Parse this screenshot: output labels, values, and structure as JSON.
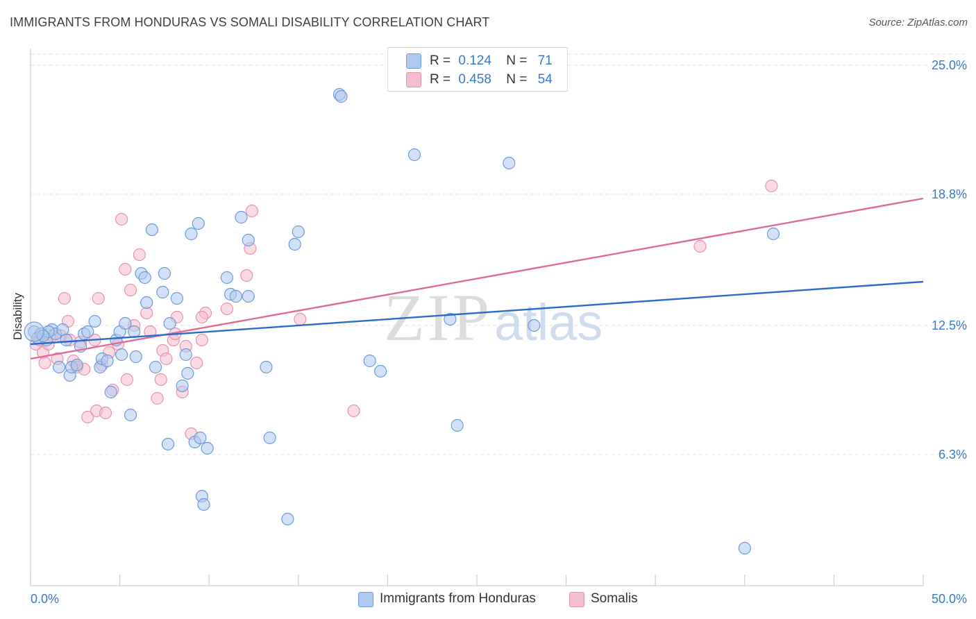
{
  "title": "IMMIGRANTS FROM HONDURAS VS SOMALI DISABILITY CORRELATION CHART",
  "source": "Source: ZipAtlas.com",
  "watermark": {
    "zip": "ZIP",
    "atlas": "atlas"
  },
  "legend": {
    "r_label": "R =",
    "n_label": "N =",
    "series1": {
      "r": "0.124",
      "n": "71"
    },
    "series2": {
      "r": "0.458",
      "n": "54"
    }
  },
  "colors": {
    "blue_fill": "#aec9ef",
    "blue_stroke": "#6d9ad8",
    "blue_line": "#2a6dc9",
    "pink_fill": "#f5bccd",
    "pink_stroke": "#e593ad",
    "pink_line": "#e06a94",
    "tick_text": "#3a78c9",
    "grid": "#e3e3e3"
  },
  "chart_data": {
    "type": "scatter",
    "title": "IMMIGRANTS FROM HONDURAS VS SOMALI DISABILITY CORRELATION CHART",
    "xlabel": "",
    "ylabel": "Disability",
    "xlim": [
      0,
      50
    ],
    "ylim": [
      0,
      25.8
    ],
    "x_tick_labels": [
      "0.0%",
      "50.0%"
    ],
    "y_ticks": [
      6.3,
      12.5,
      18.8,
      25.0
    ],
    "y_tick_labels": [
      "6.3%",
      "12.5%",
      "18.8%",
      "25.0%"
    ],
    "legend_position": "bottom",
    "series": [
      {
        "name": "Immigrants from Honduras",
        "trend": {
          "x": [
            0,
            50
          ],
          "y": [
            11.6,
            14.6
          ]
        },
        "points": [
          [
            0.2,
            12.2
          ],
          [
            0.4,
            11.9
          ],
          [
            0.6,
            12.1
          ],
          [
            0.9,
            11.8
          ],
          [
            1.2,
            12.3
          ],
          [
            1.4,
            12.1
          ],
          [
            1.6,
            10.5
          ],
          [
            1.8,
            12.3
          ],
          [
            2.0,
            11.8
          ],
          [
            2.2,
            10.1
          ],
          [
            2.3,
            10.5
          ],
          [
            2.6,
            10.6
          ],
          [
            2.8,
            11.5
          ],
          [
            3.0,
            12.1
          ],
          [
            3.2,
            12.2
          ],
          [
            3.6,
            12.7
          ],
          [
            3.9,
            10.5
          ],
          [
            4.0,
            10.9
          ],
          [
            4.3,
            10.8
          ],
          [
            4.5,
            9.3
          ],
          [
            4.8,
            11.8
          ],
          [
            5.0,
            12.2
          ],
          [
            5.1,
            11.1
          ],
          [
            5.3,
            12.6
          ],
          [
            5.6,
            8.2
          ],
          [
            5.9,
            11.0
          ],
          [
            5.8,
            12.2
          ],
          [
            6.2,
            15.0
          ],
          [
            6.4,
            14.8
          ],
          [
            6.5,
            13.6
          ],
          [
            6.8,
            17.1
          ],
          [
            7.0,
            10.5
          ],
          [
            7.4,
            14.1
          ],
          [
            7.5,
            15.0
          ],
          [
            7.7,
            6.8
          ],
          [
            7.8,
            12.6
          ],
          [
            8.2,
            13.8
          ],
          [
            8.5,
            9.6
          ],
          [
            8.7,
            11.1
          ],
          [
            8.8,
            10.2
          ],
          [
            9.0,
            16.9
          ],
          [
            9.2,
            6.9
          ],
          [
            9.4,
            17.4
          ],
          [
            9.5,
            7.1
          ],
          [
            9.6,
            4.3
          ],
          [
            9.7,
            3.9
          ],
          [
            9.9,
            6.6
          ],
          [
            11.0,
            14.8
          ],
          [
            11.2,
            14.0
          ],
          [
            11.5,
            13.9
          ],
          [
            11.8,
            17.7
          ],
          [
            12.2,
            16.6
          ],
          [
            12.2,
            13.9
          ],
          [
            13.2,
            10.5
          ],
          [
            13.4,
            7.1
          ],
          [
            14.4,
            3.2
          ],
          [
            14.8,
            16.4
          ],
          [
            15.0,
            17.0
          ],
          [
            17.3,
            23.6
          ],
          [
            17.4,
            23.5
          ],
          [
            19.0,
            10.8
          ],
          [
            19.6,
            10.3
          ],
          [
            21.5,
            20.7
          ],
          [
            23.5,
            12.8
          ],
          [
            23.9,
            7.7
          ],
          [
            26.8,
            20.3
          ],
          [
            28.2,
            12.5
          ],
          [
            40.0,
            1.8
          ],
          [
            41.6,
            16.9
          ],
          [
            1.0,
            12.2
          ],
          [
            0.7,
            12.0
          ]
        ]
      },
      {
        "name": "Somalis",
        "trend": {
          "x": [
            0,
            50
          ],
          "y": [
            10.9,
            18.6
          ]
        },
        "points": [
          [
            0.3,
            11.6
          ],
          [
            0.5,
            11.8
          ],
          [
            0.7,
            11.2
          ],
          [
            0.8,
            10.7
          ],
          [
            1.0,
            11.6
          ],
          [
            1.2,
            12.0
          ],
          [
            1.5,
            10.9
          ],
          [
            1.7,
            12.0
          ],
          [
            1.9,
            13.8
          ],
          [
            2.1,
            12.7
          ],
          [
            2.2,
            11.8
          ],
          [
            2.4,
            10.8
          ],
          [
            2.6,
            10.5
          ],
          [
            2.8,
            11.7
          ],
          [
            3.0,
            10.4
          ],
          [
            3.2,
            8.1
          ],
          [
            3.6,
            11.8
          ],
          [
            3.7,
            8.4
          ],
          [
            3.8,
            13.8
          ],
          [
            4.0,
            10.6
          ],
          [
            4.2,
            8.3
          ],
          [
            4.4,
            11.2
          ],
          [
            4.6,
            9.4
          ],
          [
            4.9,
            11.6
          ],
          [
            5.1,
            17.6
          ],
          [
            5.3,
            15.2
          ],
          [
            5.4,
            9.9
          ],
          [
            5.6,
            14.2
          ],
          [
            5.8,
            12.5
          ],
          [
            6.1,
            15.9
          ],
          [
            6.5,
            13.1
          ],
          [
            6.7,
            12.2
          ],
          [
            7.1,
            9.0
          ],
          [
            7.3,
            9.9
          ],
          [
            7.4,
            11.3
          ],
          [
            7.6,
            10.9
          ],
          [
            8.0,
            11.8
          ],
          [
            8.2,
            12.9
          ],
          [
            8.5,
            9.3
          ],
          [
            8.7,
            11.5
          ],
          [
            9.0,
            7.3
          ],
          [
            9.3,
            10.7
          ],
          [
            9.6,
            11.8
          ],
          [
            9.8,
            13.1
          ],
          [
            9.6,
            12.9
          ],
          [
            11.0,
            13.3
          ],
          [
            12.1,
            14.9
          ],
          [
            12.3,
            16.2
          ],
          [
            12.4,
            18.0
          ],
          [
            15.1,
            12.8
          ],
          [
            18.1,
            8.4
          ],
          [
            37.5,
            16.3
          ],
          [
            41.5,
            19.2
          ],
          [
            8.1,
            12.1
          ]
        ]
      }
    ]
  }
}
